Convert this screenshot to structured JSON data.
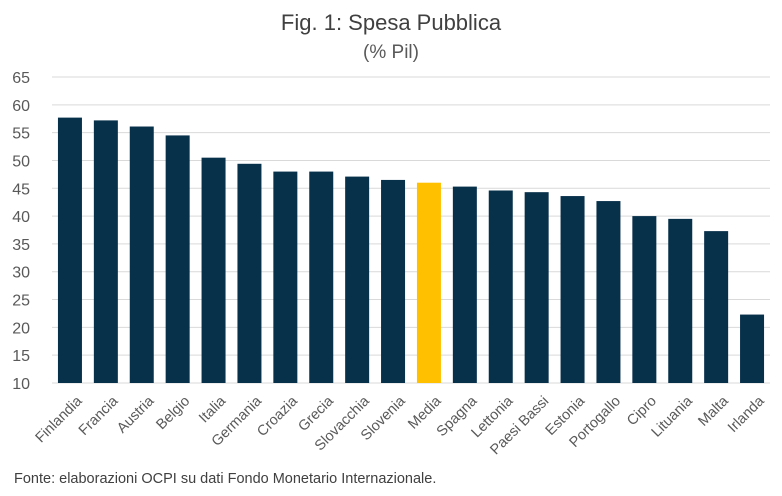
{
  "title": "Fig. 1: Spesa Pubblica",
  "subtitle": "(% Pil)",
  "source_note": "Fonte: elaborazioni OCPI su dati Fondo Monetario Internazionale.",
  "colors": {
    "bar": "#07304b",
    "highlight": "#ffc000",
    "grid": "#d9d9d9",
    "axis_text": "#595959"
  },
  "chart_data": {
    "type": "bar",
    "title": "Fig. 1: Spesa Pubblica",
    "subtitle": "(% Pil)",
    "categories": [
      "Finlandia",
      "Francia",
      "Austria",
      "Belgio",
      "Italia",
      "Germania",
      "Croazia",
      "Grecia",
      "Slovacchia",
      "Slovenia",
      "Media",
      "Spagna",
      "Lettonia",
      "Paesi Bassi",
      "Estonia",
      "Portogallo",
      "Cipro",
      "Lituania",
      "Malta",
      "Irlanda"
    ],
    "values": [
      57.7,
      57.2,
      56.1,
      54.5,
      50.5,
      49.4,
      48.0,
      48.0,
      47.1,
      46.5,
      46.0,
      45.3,
      44.6,
      44.3,
      43.6,
      42.7,
      40.0,
      39.5,
      37.3,
      22.3
    ],
    "highlight_category": "Media",
    "ylim": [
      10,
      65
    ],
    "yticks": [
      10,
      15,
      20,
      25,
      30,
      35,
      40,
      45,
      50,
      55,
      60,
      65
    ],
    "grid": true,
    "legend": "none"
  }
}
